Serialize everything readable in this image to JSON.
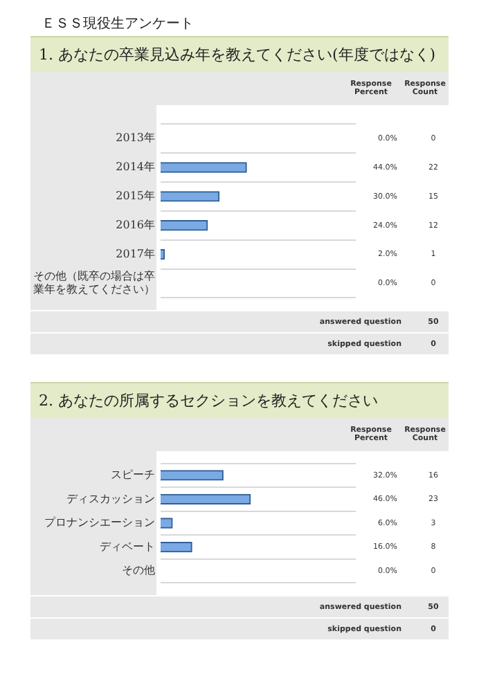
{
  "chart_data": [
    {
      "type": "bar",
      "orientation": "horizontal",
      "title": "ＥＳＳ現役生アンケート",
      "subtitle": "1.  あなたの卒業見込み年を教えてください(年度ではなく)",
      "categories": [
        "2013年",
        "2014年",
        "2015年",
        "2016年",
        "2017年",
        "その他（既卒の場合は卒業年を教えてください）"
      ],
      "series": [
        {
          "color": "#7ba9e3",
          "values": [
            0,
            44,
            30,
            24,
            2,
            0
          ],
          "value_labels": [
            "0.0%",
            "44.0%",
            "30.0%",
            "24.0%",
            "2.0%",
            "0.0%"
          ]
        }
      ],
      "xlim": [
        0,
        100
      ],
      "tick_labels": "y",
      "grid": "y",
      "legend": false,
      "annotations": [
        "Response Percent",
        "Response Count",
        "0",
        "22",
        "15",
        "12",
        "1",
        "0",
        "answered question",
        "50",
        "skipped question",
        "0"
      ]
    },
    {
      "type": "bar",
      "orientation": "horizontal",
      "title": "2.  あなたの所属するセクションを教えてください",
      "categories": [
        "スピーチ",
        "ディスカッション",
        "プロナンシエーション",
        "ディベート",
        "その他"
      ],
      "series": [
        {
          "color": "#7ba9e3",
          "values": [
            32,
            46,
            6,
            16,
            0
          ],
          "value_labels": [
            "32.0%",
            "46.0%",
            "6.0%",
            "16.0%",
            "0.0%"
          ]
        }
      ],
      "xlim": [
        0,
        100
      ],
      "tick_labels": "y",
      "grid": "y",
      "legend": false,
      "annotations": [
        "Response Percent",
        "Response Count",
        "16",
        "23",
        "3",
        "8",
        "0",
        "answered question",
        "50",
        "skipped question",
        "0"
      ]
    }
  ]
}
